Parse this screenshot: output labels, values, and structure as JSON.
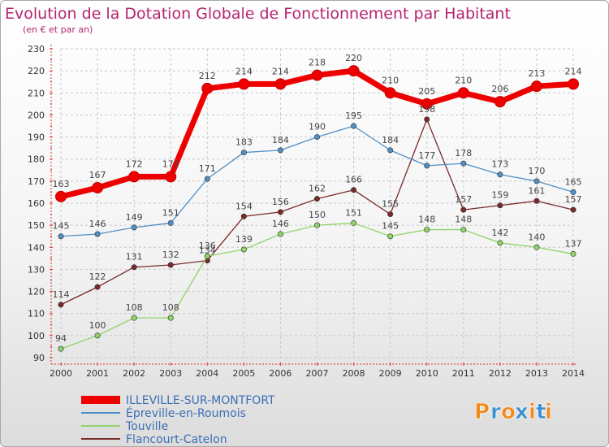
{
  "chart_data": {
    "type": "line",
    "title": "Evolution de la Dotation Globale de Fonctionnement par Habitant",
    "subtitle": "(en € et par an)",
    "xlabel": "",
    "ylabel": "",
    "ylim": [
      90,
      230
    ],
    "y_ticks": [
      "90",
      "100",
      "110",
      "120",
      "130",
      "140",
      "150",
      "160",
      "170",
      "180",
      "190",
      "200",
      "210",
      "220",
      "230"
    ],
    "x": [
      "2000",
      "2001",
      "2002",
      "2003",
      "2004",
      "2005",
      "2006",
      "2007",
      "2008",
      "2009",
      "2010",
      "2011",
      "2012",
      "2013",
      "2014"
    ],
    "grid": true,
    "legend_position": "bottom-left",
    "series": [
      {
        "name": "ILLEVILLE-SUR-MONTFORT",
        "color": "#ee0000",
        "values": [
          163,
          167,
          172,
          172,
          212,
          214,
          214,
          218,
          220,
          210,
          205,
          210,
          206,
          213,
          214
        ],
        "labels": [
          "163",
          "167",
          "172",
          "172",
          "212",
          "214",
          "214",
          "218",
          "220",
          "210",
          "205",
          "210",
          "206",
          "213",
          "214"
        ]
      },
      {
        "name": "Épreville-en-Roumois",
        "color": "#4f8fc7",
        "values": [
          145,
          146,
          149,
          151,
          171,
          183,
          184,
          190,
          195,
          184,
          177,
          178,
          173,
          170,
          165
        ],
        "labels": [
          "145",
          "146",
          "149",
          "151",
          "171",
          "183",
          "184",
          "190",
          "195",
          "184",
          "177",
          "178",
          "173",
          "170",
          "165"
        ]
      },
      {
        "name": "Touville",
        "color": "#8fd36a",
        "values": [
          94,
          100,
          108,
          108,
          136,
          139,
          146,
          150,
          151,
          145,
          148,
          148,
          142,
          140,
          137
        ],
        "labels": [
          "94",
          "100",
          "108",
          "108",
          "136",
          "139",
          "146",
          "150",
          "151",
          "145",
          "148",
          "148",
          "142",
          "140",
          "137"
        ]
      },
      {
        "name": "Flancourt-Catelon",
        "color": "#7a2a2a",
        "values": [
          114,
          122,
          131,
          132,
          134,
          154,
          156,
          162,
          166,
          155,
          198,
          157,
          159,
          161,
          157
        ],
        "labels": [
          "114",
          "122",
          "131",
          "132",
          "134",
          "154",
          "156",
          "162",
          "166",
          "155",
          "198",
          "157",
          "159",
          "161",
          "157"
        ]
      }
    ]
  },
  "logo": {
    "letters": [
      "P",
      "r",
      "o",
      "x",
      "i",
      "t",
      "i"
    ],
    "colors": [
      "#f08a1c",
      "#3a8fd0",
      "#f08a1c",
      "#3a8fd0",
      "#f08a1c",
      "#3a8fd0",
      "#f08a1c"
    ]
  }
}
